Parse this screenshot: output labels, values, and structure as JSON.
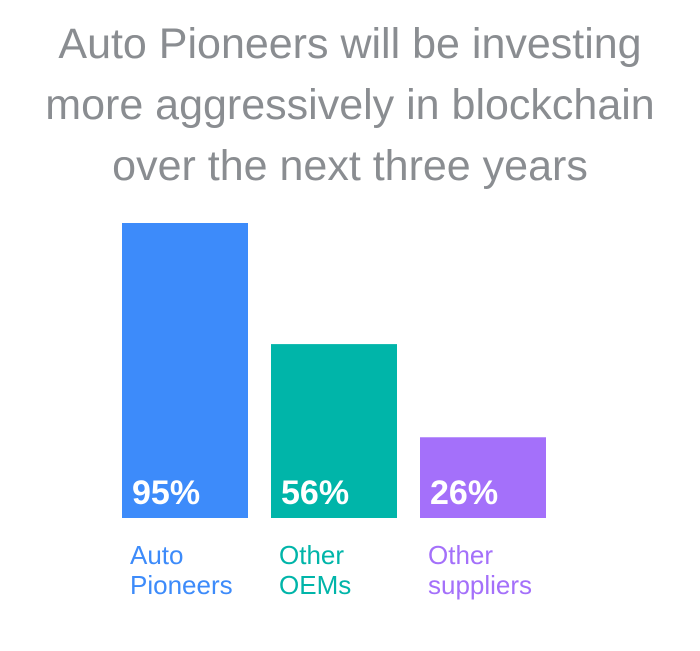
{
  "title_lines": [
    "Auto Pioneers will be investing",
    "more aggressively in blockchain",
    "over the next three years"
  ],
  "colors": {
    "title": "#8a8d91",
    "background": "#ffffff"
  },
  "chart_data": {
    "type": "bar",
    "title": "Auto Pioneers will be investing more aggressively in blockchain over the next three years",
    "xlabel": "",
    "ylabel": "",
    "ylim": [
      0,
      100
    ],
    "grid": false,
    "legend": "none",
    "categories": [
      [
        "Auto",
        "Pioneers"
      ],
      [
        "Other",
        "OEMs"
      ],
      [
        "Other",
        "suppliers"
      ]
    ],
    "values": [
      95,
      56,
      26
    ],
    "value_labels": [
      "95%",
      "56%",
      "26%"
    ],
    "bar_colors": [
      "#3d8bfa",
      "#00b5a9",
      "#a470fa"
    ]
  }
}
